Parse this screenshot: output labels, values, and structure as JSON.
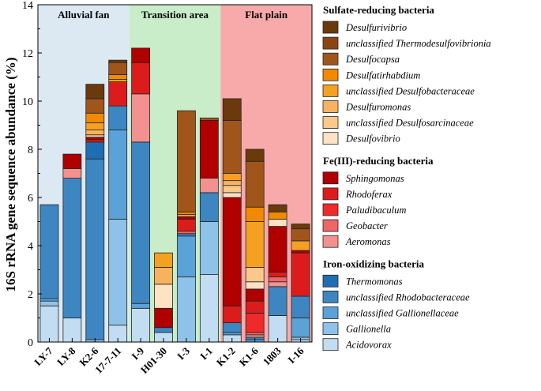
{
  "chart_data": {
    "type": "bar",
    "stacked": true,
    "ylabel": "16S rRNA gene sequence abundance (%)",
    "ylim": [
      0,
      14
    ],
    "yticks": [
      0,
      2,
      4,
      6,
      8,
      10,
      12,
      14
    ],
    "categories": [
      "LY-7",
      "LY-8",
      "K2-6",
      "17-7-11",
      "I-9",
      "H01-30",
      "I-3",
      "I-1",
      "K1-2",
      "K1-6",
      "1803",
      "I-16"
    ],
    "regions": [
      {
        "label": "Alluvial fan",
        "from": 0,
        "to": 3,
        "color": "#dce9f2"
      },
      {
        "label": "Transition area",
        "from": 4,
        "to": 7,
        "color": "#c8edc8"
      },
      {
        "label": "Flat plain",
        "from": 8,
        "to": 11,
        "color": "#f8aaaa"
      }
    ],
    "groups": [
      {
        "title": "Sulfate-reducing bacteria",
        "series": [
          0,
          1,
          2,
          3,
          4,
          5,
          6,
          7
        ]
      },
      {
        "title": "Fe(III)-reducing bacteria",
        "series": [
          8,
          9,
          10,
          11,
          12
        ]
      },
      {
        "title": "Iron-oxidizing bacteria",
        "series": [
          13,
          14,
          15,
          16,
          17
        ]
      }
    ],
    "series": [
      {
        "name": "Desulfurivibrio",
        "color": "#6b3a0c",
        "values": [
          0,
          0,
          0.6,
          0.1,
          0,
          0,
          0,
          0,
          0.9,
          0.5,
          0.3,
          0.2
        ]
      },
      {
        "name": "unclassified Thermodesulfovibrionia",
        "color": "#8b4513",
        "values": [
          0,
          0,
          0,
          0,
          0,
          0,
          0,
          0,
          0,
          0,
          0,
          0
        ]
      },
      {
        "name": "Desulfocapsa",
        "color": "#a0561a",
        "values": [
          0,
          0,
          0.6,
          0.5,
          0,
          0,
          4.2,
          0.1,
          2.2,
          1.9,
          0,
          0.5
        ]
      },
      {
        "name": "Desulfatirhabdium",
        "color": "#f28a00",
        "values": [
          0,
          0,
          0.4,
          0.2,
          0,
          0,
          0.1,
          0,
          0,
          0.6,
          0.3,
          0
        ]
      },
      {
        "name": "unclassified Desulfobacteraceae",
        "color": "#f5a020",
        "values": [
          0,
          0,
          0.3,
          0.1,
          0,
          0.6,
          0.1,
          0,
          0.3,
          1.9,
          0,
          0.4
        ]
      },
      {
        "name": "Desulfuromonas",
        "color": "#f7b260",
        "values": [
          0,
          0,
          0.2,
          0,
          0,
          0.7,
          0,
          0,
          0.2,
          0,
          0,
          0
        ]
      },
      {
        "name": "unclassified Desulfosarcinaceae",
        "color": "#fac888",
        "values": [
          0,
          0,
          0.1,
          0,
          0,
          0,
          0,
          0,
          0.3,
          0.6,
          0,
          0
        ]
      },
      {
        "name": "Desulfovibrio",
        "color": "#fde2c4",
        "values": [
          0,
          0,
          0,
          0,
          0,
          1.0,
          0,
          0,
          0.2,
          0.3,
          0.3,
          0
        ]
      },
      {
        "name": "Sphingomonas",
        "color": "#b00000",
        "values": [
          0,
          0.6,
          0.1,
          0,
          0.6,
          0.8,
          0.1,
          2.4,
          4.5,
          0.5,
          1.9,
          0.1
        ]
      },
      {
        "name": "Rhodoferax",
        "color": "#dc1c1c",
        "values": [
          0,
          0,
          0.1,
          1.0,
          1.3,
          0,
          0.5,
          0,
          0.7,
          0.5,
          0.2,
          1.8
        ]
      },
      {
        "name": "Paludibaculum",
        "color": "#ef2a2a",
        "values": [
          0,
          0,
          0,
          0,
          0,
          0,
          0,
          0,
          0,
          0.8,
          0,
          0
        ]
      },
      {
        "name": "Geobacter",
        "color": "#ee6666",
        "values": [
          0,
          0,
          0,
          0,
          0,
          0,
          0.1,
          0,
          0,
          0.1,
          0.2,
          0
        ]
      },
      {
        "name": "Aeromonas",
        "color": "#f29190",
        "values": [
          0,
          0.4,
          0,
          0,
          2.0,
          0,
          0,
          0.6,
          0,
          0.1,
          0.2,
          0
        ]
      },
      {
        "name": "Thermomonas",
        "color": "#1f6eb3",
        "values": [
          0,
          0,
          0.7,
          0,
          0,
          0,
          0,
          0,
          0,
          0,
          0,
          0
        ]
      },
      {
        "name": "unclassified Rhodobacteraceae",
        "color": "#3d86c2",
        "values": [
          3.9,
          5.8,
          7.5,
          1.0,
          6.7,
          0.2,
          0.1,
          1.2,
          0.4,
          0.1,
          1.2,
          0.9
        ]
      },
      {
        "name": "unclassified Gallionellaceae",
        "color": "#5aa2d8",
        "values": [
          0.1,
          0,
          0,
          3.7,
          0.2,
          0,
          1.7,
          0,
          0.1,
          0.1,
          0,
          0.8
        ]
      },
      {
        "name": "Gallionella",
        "color": "#8ec2e8",
        "values": [
          0.2,
          0,
          0.1,
          4.4,
          0,
          0,
          2.7,
          2.2,
          0,
          0,
          0,
          0.1
        ]
      },
      {
        "name": "Acidovorax",
        "color": "#c2dcf2",
        "values": [
          1.5,
          1.0,
          0,
          0.7,
          1.4,
          0.4,
          0,
          2.8,
          0.3,
          0,
          1.1,
          0.1
        ]
      }
    ]
  }
}
